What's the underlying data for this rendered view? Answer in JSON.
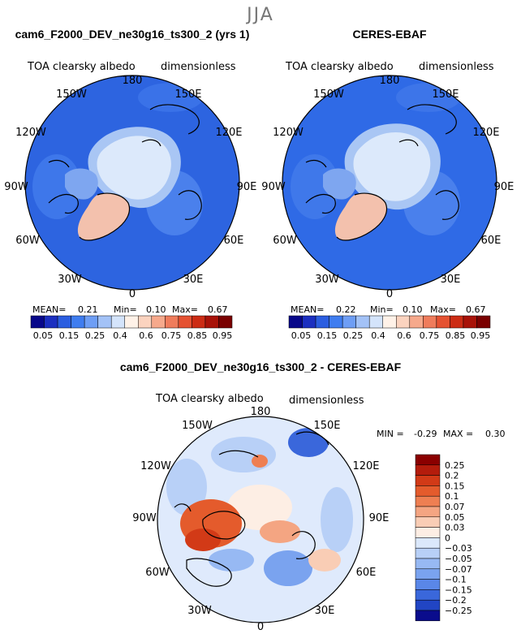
{
  "season": "JJA",
  "colors": {
    "ocean_model": "#2d64e0",
    "ocean_obs": "#2f6ae6",
    "ice": "#dce9fb",
    "ice_edge": "#a9c6f4",
    "greenland": "#f3c1ad",
    "land_mid": "#7ea6f0",
    "diff_bg": "#dfeafc",
    "coast": "#000000"
  },
  "chart_data": [
    {
      "type": "heatmap",
      "projection": "north-polar-stereographic",
      "title": "cam6_F2000_DEV_ne30g16_ts300_2 (yrs 1)",
      "variable": "TOA clearsky albedo",
      "units": "dimensionless",
      "lon_labels": [
        "180",
        "150E",
        "120E",
        "90E",
        "60E",
        "30E",
        "0",
        "30W",
        "60W",
        "90W",
        "120W",
        "150W"
      ],
      "stats": {
        "mean_label": "MEAN=",
        "mean": "0.21",
        "min_label": "Min=",
        "min": "0.10",
        "max_label": "Max=",
        "max": "0.67"
      },
      "colorbar": {
        "orientation": "horizontal",
        "labels": [
          "0.05",
          "0.15",
          "0.25",
          "0.4",
          "0.6",
          "0.75",
          "0.85",
          "0.95"
        ],
        "colors": [
          "#08088a",
          "#1b2fc0",
          "#2b5ee0",
          "#3f7df0",
          "#6e9ef5",
          "#a3c2f7",
          "#d4e4fb",
          "#fff2e8",
          "#fbd3bf",
          "#f6a98c",
          "#ef7c5c",
          "#e55232",
          "#cc2c14",
          "#a81208",
          "#7a0000"
        ]
      }
    },
    {
      "type": "heatmap",
      "projection": "north-polar-stereographic",
      "title": "CERES-EBAF",
      "variable": "TOA clearsky albedo",
      "units": "dimensionless",
      "lon_labels": [
        "180",
        "150E",
        "120E",
        "90E",
        "60E",
        "30E",
        "0",
        "30W",
        "60W",
        "90W",
        "120W",
        "150W"
      ],
      "stats": {
        "mean_label": "MEAN=",
        "mean": "0.22",
        "min_label": "Min=",
        "min": "0.10",
        "max_label": "Max=",
        "max": "0.67"
      },
      "colorbar": {
        "orientation": "horizontal",
        "labels": [
          "0.05",
          "0.15",
          "0.25",
          "0.4",
          "0.6",
          "0.75",
          "0.85",
          "0.95"
        ],
        "colors": [
          "#08088a",
          "#1b2fc0",
          "#2b5ee0",
          "#3f7df0",
          "#6e9ef5",
          "#a3c2f7",
          "#d4e4fb",
          "#fff2e8",
          "#fbd3bf",
          "#f6a98c",
          "#ef7c5c",
          "#e55232",
          "#cc2c14",
          "#a81208",
          "#7a0000"
        ]
      }
    },
    {
      "type": "heatmap",
      "projection": "north-polar-stereographic",
      "title": "cam6_F2000_DEV_ne30g16_ts300_2 - CERES-EBAF",
      "variable": "TOA clearsky albedo",
      "units": "dimensionless",
      "lon_labels": [
        "180",
        "150E",
        "120E",
        "90E",
        "60E",
        "30E",
        "0",
        "30W",
        "60W",
        "90W",
        "120W",
        "150W"
      ],
      "stats": {
        "min_label": "MIN =",
        "min": "-0.29",
        "max_label": "MAX =",
        "max": "0.30"
      },
      "colorbar": {
        "orientation": "vertical",
        "labels": [
          "0.25",
          "0.2",
          "0.15",
          "0.1",
          "0.07",
          "0.05",
          "0.03",
          "0",
          "-0.03",
          "-0.05",
          "-0.07",
          "-0.1",
          "-0.15",
          "-0.2",
          "-0.25"
        ],
        "colors": [
          "#8b0000",
          "#b41c0c",
          "#d23a17",
          "#e45b2c",
          "#ee7f52",
          "#f4a582",
          "#f9cdb5",
          "#fdeee4",
          "#dbe8fb",
          "#b8d0f7",
          "#97b9f3",
          "#7aa3ef",
          "#5a87e8",
          "#3a67db",
          "#2145c4",
          "#0a0c8c"
        ]
      }
    }
  ]
}
